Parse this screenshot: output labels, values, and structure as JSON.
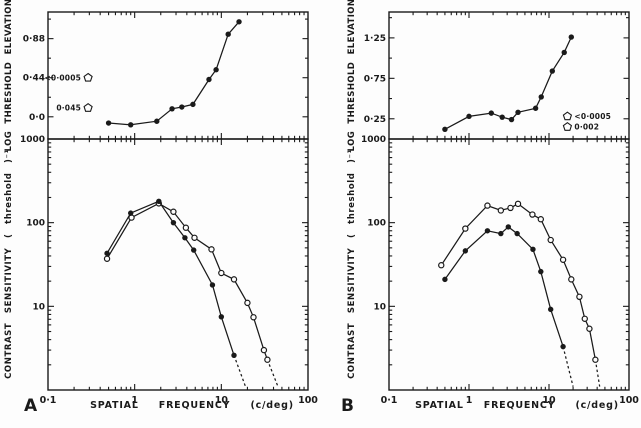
{
  "figure": {
    "background": "#fdfdfd",
    "ink": "#1a1a1a",
    "panels": [
      {
        "label": "A"
      },
      {
        "label": "B"
      }
    ]
  },
  "chart_data": [
    {
      "id": "a_top",
      "type": "line",
      "panel": "A",
      "position": "top",
      "x_scale": "log",
      "y_scale": "linear",
      "xlim": [
        0.1,
        100
      ],
      "ylim": [
        -0.25,
        1.18
      ],
      "ylabel": "LOG THRESHOLD ELEVATION",
      "yticks": [
        {
          "v": 0.0,
          "label": "0·0"
        },
        {
          "v": 0.44,
          "label": "0·44"
        },
        {
          "v": 0.88,
          "label": "0·88"
        }
      ],
      "yticks_minor": [
        0.22,
        0.66,
        1.1
      ],
      "grid": false,
      "series": [
        {
          "name": "threshold-elevation",
          "marker": "filled-circle",
          "x": [
            0.5,
            0.9,
            1.8,
            2.7,
            3.5,
            4.7,
            7.2,
            8.7,
            12,
            16
          ],
          "y": [
            -0.07,
            -0.09,
            -0.05,
            0.09,
            0.11,
            0.14,
            0.42,
            0.53,
            0.93,
            1.07
          ]
        }
      ],
      "annotations": [
        {
          "text": "<0·0005",
          "x": 0.29,
          "y": 0.44,
          "symbol": "pentagon",
          "symbol_side": "right"
        },
        {
          "text": "0·045",
          "x": 0.29,
          "y": 0.1,
          "symbol": "pentagon",
          "symbol_side": "right"
        }
      ]
    },
    {
      "id": "a_bottom",
      "type": "line",
      "panel": "A",
      "position": "bottom",
      "x_scale": "log",
      "y_scale": "log",
      "xlim": [
        0.1,
        100
      ],
      "ylim": [
        1,
        1000
      ],
      "ylabel": "CONTRAST SENSITIVITY ( threshold )⁻¹",
      "xlabel": "SPATIAL FREQUENCY (c/deg)",
      "xticks": [
        {
          "v": 0.1,
          "label": "0·1"
        },
        {
          "v": 1,
          "label": "1"
        },
        {
          "v": 10,
          "label": "10"
        },
        {
          "v": 100,
          "label": "100"
        }
      ],
      "yticks": [
        {
          "v": 10,
          "label": "10"
        },
        {
          "v": 100,
          "label": "100"
        },
        {
          "v": 1000,
          "label": "1000"
        }
      ],
      "grid": false,
      "series": [
        {
          "name": "open-circles",
          "marker": "open-circle",
          "x": [
            0.48,
            0.92,
            1.9,
            2.8,
            3.9,
            4.9,
            7.7,
            10,
            14,
            20,
            23.5,
            31,
            34
          ],
          "y": [
            37,
            115,
            170,
            135,
            87,
            66,
            48,
            25,
            21,
            11,
            7.4,
            3.0,
            2.3
          ],
          "dashed_to": [
            45,
            1.1
          ]
        },
        {
          "name": "filled-circles",
          "marker": "filled-circle",
          "x": [
            0.48,
            0.9,
            1.9,
            2.8,
            3.8,
            4.8,
            7.9,
            10,
            14
          ],
          "y": [
            43,
            130,
            180,
            100,
            66,
            47,
            18,
            7.5,
            2.6
          ],
          "dashed_to": [
            19,
            1.1
          ]
        }
      ],
      "annotations": []
    },
    {
      "id": "b_top",
      "type": "line",
      "panel": "B",
      "position": "top",
      "x_scale": "log",
      "y_scale": "linear",
      "xlim": [
        0.1,
        100
      ],
      "ylim": [
        0,
        1.57
      ],
      "ylabel": "LOG THRESHOLD ELEVATION",
      "yticks": [
        {
          "v": 0.25,
          "label": "0·25"
        },
        {
          "v": 0.75,
          "label": "0·75"
        },
        {
          "v": 1.25,
          "label": "1·25"
        }
      ],
      "yticks_minor": [
        0.5,
        1.0,
        1.5
      ],
      "grid": false,
      "series": [
        {
          "name": "threshold-elevation",
          "marker": "filled-circle",
          "x": [
            0.5,
            1.0,
            1.9,
            2.6,
            3.4,
            4.1,
            6.8,
            8,
            11,
            15.5,
            19
          ],
          "y": [
            0.12,
            0.28,
            0.32,
            0.27,
            0.24,
            0.33,
            0.38,
            0.52,
            0.84,
            1.07,
            1.26
          ]
        }
      ],
      "annotations": [
        {
          "text": "<0·0005",
          "x": 17,
          "y": 0.28,
          "symbol": "pentagon",
          "symbol_side": "left"
        },
        {
          "text": "0·002",
          "x": 17,
          "y": 0.15,
          "symbol": "pentagon",
          "symbol_side": "left"
        }
      ]
    },
    {
      "id": "b_bottom",
      "type": "line",
      "panel": "B",
      "position": "bottom",
      "x_scale": "log",
      "y_scale": "log",
      "xlim": [
        0.1,
        100
      ],
      "ylim": [
        1,
        1000
      ],
      "ylabel": "CONTRAST SENSITIVITY ( threshold )⁻¹",
      "xlabel": "SPATIAL FREQUENCY (c/deg)",
      "xticks": [
        {
          "v": 0.1,
          "label": "0·1"
        },
        {
          "v": 1,
          "label": "1"
        },
        {
          "v": 10,
          "label": "10"
        },
        {
          "v": 100,
          "label": "100"
        }
      ],
      "yticks": [
        {
          "v": 10,
          "label": "10"
        },
        {
          "v": 100,
          "label": "100"
        },
        {
          "v": 1000,
          "label": "1000"
        }
      ],
      "grid": false,
      "series": [
        {
          "name": "open-circles",
          "marker": "open-circle",
          "x": [
            0.45,
            0.9,
            1.7,
            2.5,
            3.3,
            4.1,
            6.2,
            7.9,
            10.5,
            15,
            19,
            24,
            28,
            32,
            38
          ],
          "y": [
            31,
            85,
            160,
            140,
            150,
            168,
            125,
            110,
            62,
            36,
            21,
            13,
            7.1,
            5.4,
            2.3
          ],
          "dashed_to": [
            43,
            1.1
          ]
        },
        {
          "name": "filled-circles",
          "marker": "filled-circle",
          "x": [
            0.5,
            0.9,
            1.7,
            2.5,
            3.1,
            4.0,
            6.3,
            7.9,
            10.5,
            15
          ],
          "y": [
            21,
            46,
            80,
            74,
            89,
            74,
            48,
            26,
            9.2,
            3.3
          ],
          "dashed_to": [
            20,
            1.1
          ]
        }
      ],
      "annotations": []
    }
  ]
}
